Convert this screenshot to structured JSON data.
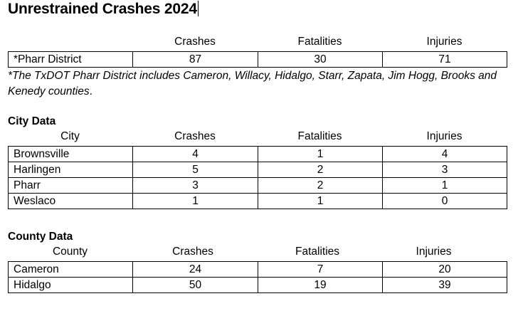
{
  "title": "Unrestrained Crashes 2024",
  "district": {
    "headers": [
      "",
      "Crashes",
      "Fatalities",
      "Injuries"
    ],
    "rows": [
      [
        "*Pharr District",
        "87",
        "30",
        "71"
      ]
    ],
    "note_italic": "*The TxDOT Pharr District includes Cameron, Willacy, Hidalgo, Starr, Zapata, Jim Hogg, Brooks and Kenedy counties",
    "note_tail": "."
  },
  "city": {
    "label": "City Data",
    "headers": [
      "City",
      "Crashes",
      "Fatalities",
      "Injuries"
    ],
    "rows": [
      [
        "Brownsville",
        "4",
        "1",
        "4"
      ],
      [
        "Harlingen",
        "5",
        "2",
        "3"
      ],
      [
        "Pharr",
        "3",
        "2",
        "1"
      ],
      [
        "Weslaco",
        "1",
        "1",
        "0"
      ]
    ]
  },
  "county": {
    "label": "County Data",
    "headers": [
      "County",
      "Crashes",
      "Fatalities",
      "Injuries"
    ],
    "rows": [
      [
        "Cameron",
        "24",
        "7",
        "20"
      ],
      [
        "Hidalgo",
        "50",
        "19",
        "39"
      ]
    ]
  }
}
